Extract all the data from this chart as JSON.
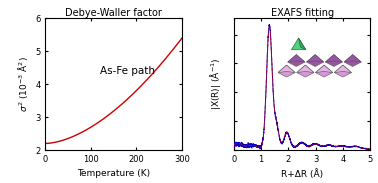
{
  "left_title": "Debye-Waller factor",
  "left_annotation": "As-Fe path",
  "left_xlabel": "Temperature (K)",
  "left_xlim": [
    0,
    300
  ],
  "left_ylim": [
    2,
    6
  ],
  "left_yticks": [
    2,
    3,
    4,
    5,
    6
  ],
  "left_xticks": [
    0,
    100,
    200,
    300
  ],
  "right_title": "EXAFS fitting",
  "right_xlabel": "R+ΔR (Å)",
  "right_xlim": [
    0,
    5
  ],
  "right_xticks": [
    0,
    1,
    2,
    3,
    4,
    5
  ],
  "line_color_data": "#0000cc",
  "line_color_fit": "#cc0000",
  "dwf_color": "#cc0000",
  "bg_color": "#ffffff",
  "oct_color_light": "#cc88cc",
  "oct_color_dark": "#7a3080",
  "tet_color": "#44cc77"
}
